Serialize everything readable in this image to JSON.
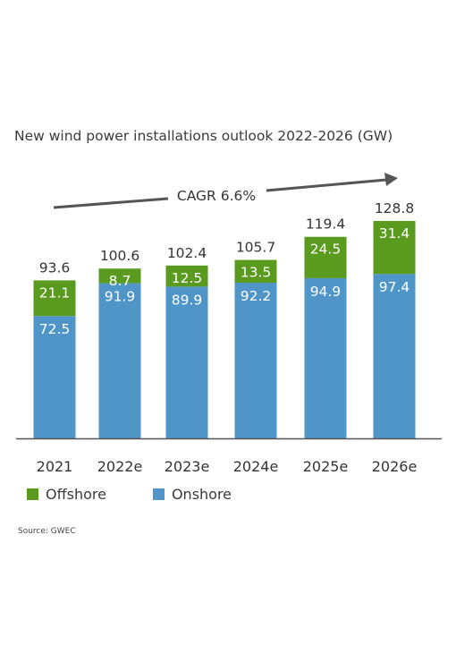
{
  "chart_data": {
    "type": "bar",
    "stacked": true,
    "title": "New wind power installations outlook 2022-2026 (GW)",
    "categories": [
      "2021",
      "2022e",
      "2023e",
      "2024e",
      "2025e",
      "2026e"
    ],
    "series": [
      {
        "name": "Onshore",
        "values": [
          72.5,
          91.9,
          89.9,
          92.2,
          94.9,
          97.4
        ],
        "color": "#4f95c8"
      },
      {
        "name": "Offshore",
        "values": [
          21.1,
          8.7,
          12.5,
          13.5,
          24.5,
          31.4
        ],
        "color": "#5a9a1f"
      }
    ],
    "totals": [
      "93.6",
      "100.6",
      "102.4",
      "105.7",
      "119.4",
      "128.8"
    ],
    "ylim": [
      0,
      128.8
    ],
    "annotation": "CAGR 6.6%",
    "legend": [
      "Offshore",
      "Onshore"
    ],
    "legend_placement": "bottom-left",
    "grid": false
  },
  "source": "Source: GWEC"
}
